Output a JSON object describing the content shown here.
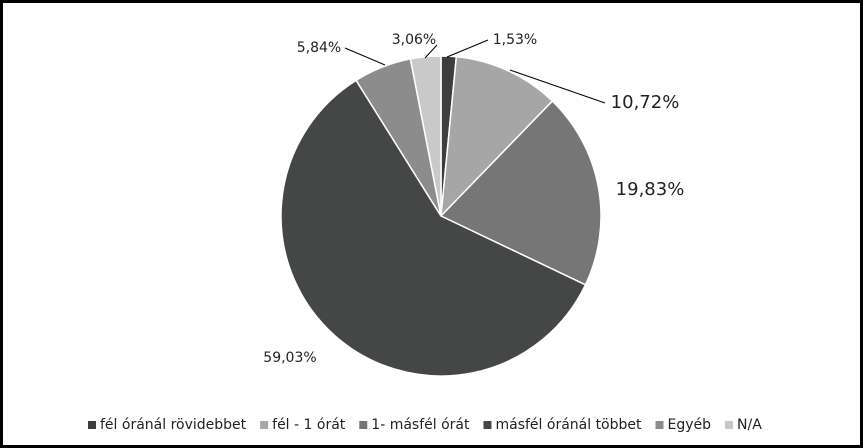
{
  "chart_data": {
    "type": "pie",
    "categories": [
      "fél óránál rövidebbet",
      "fél - 1 órát",
      "1- másfél órát",
      "másfél óránál többet",
      "Egyéb",
      "N/A"
    ],
    "values": [
      1.53,
      10.72,
      19.83,
      59.03,
      5.84,
      3.06
    ],
    "value_labels": [
      "1,53%",
      "10,72%",
      "19,83%",
      "59,03%",
      "5,84%",
      "3,06%"
    ],
    "colors": [
      "#3d3d3d",
      "#a6a6a6",
      "#767676",
      "#454746",
      "#8c8c8c",
      "#c9c9c9"
    ],
    "legend": "bottom"
  }
}
